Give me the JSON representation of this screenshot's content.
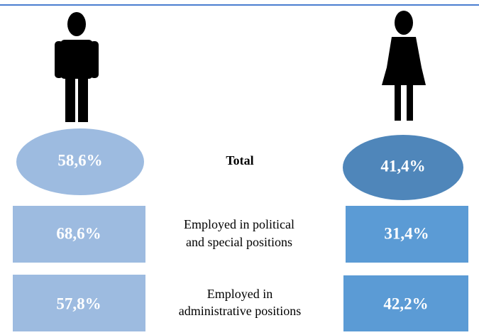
{
  "rows": [
    {
      "label": [
        "Total"
      ],
      "men": "58,6%",
      "women": "41,4%"
    },
    {
      "label": [
        "Employed in political",
        "and special positions"
      ],
      "men": "68,6%",
      "women": "31,4%"
    },
    {
      "label": [
        "Employed in",
        "administrative positions"
      ],
      "men": "57,8%",
      "women": "42,2%"
    }
  ]
}
